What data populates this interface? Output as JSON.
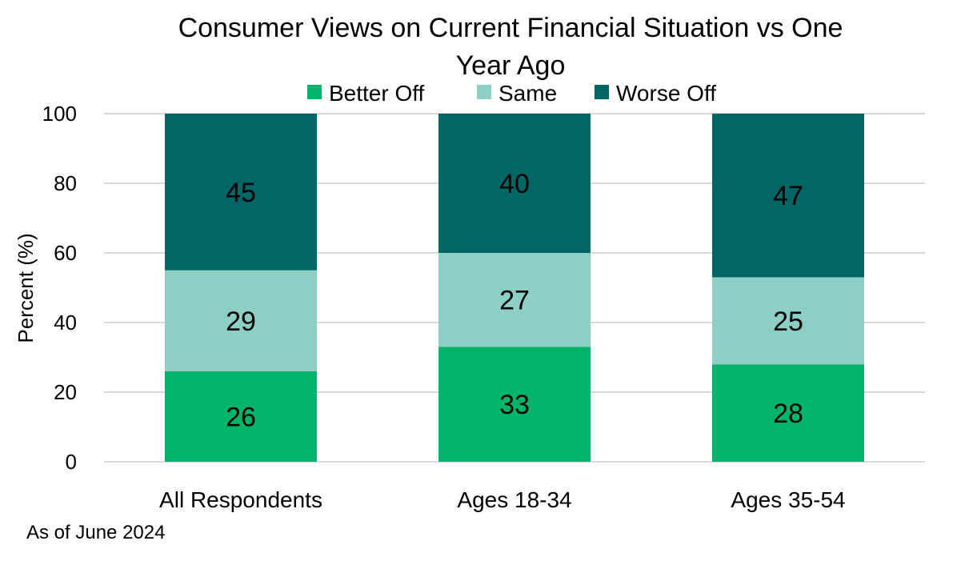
{
  "chart_data": {
    "type": "bar",
    "stacked": true,
    "title": "Consumer Views on Current Financial Situation vs One Year Ago",
    "title_lines": [
      "Consumer Views on Current Financial Situation vs One",
      "Year Ago"
    ],
    "xlabel": "",
    "ylabel": "Percent (%)",
    "ylim": [
      0,
      100
    ],
    "yticks": [
      0,
      20,
      40,
      60,
      80,
      100
    ],
    "grid": true,
    "legend_position": "top",
    "categories": [
      "All Respondents",
      "Ages 18-34",
      "Ages 35-54"
    ],
    "series": [
      {
        "name": "Better Off",
        "color": "#00b56a",
        "values": [
          26,
          33,
          28
        ]
      },
      {
        "name": "Same",
        "color": "#8dcfc4",
        "values": [
          29,
          27,
          25
        ]
      },
      {
        "name": "Worse Off",
        "color": "#036666",
        "values": [
          45,
          40,
          47
        ]
      }
    ],
    "footnote": "As of June 2024"
  }
}
